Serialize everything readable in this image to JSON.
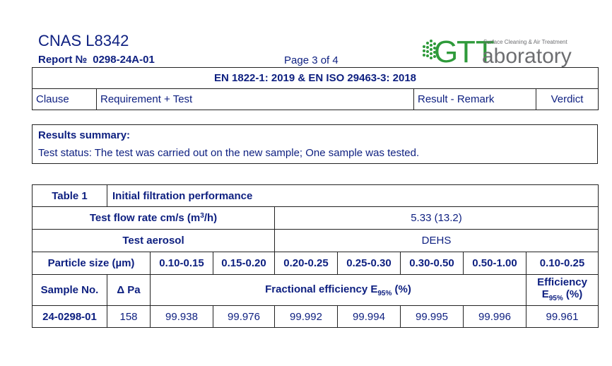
{
  "header": {
    "cnas": "CNAS L8342",
    "report_label": "Report №",
    "report_number": "0298-24A-01",
    "page": "Page 3 of 4"
  },
  "logo": {
    "g_letter": "G",
    "tt_letters": "TT",
    "word": "aboratory",
    "tagline": "Surface Cleaning & Air Treatment",
    "green": "#2e9a3a",
    "grey": "#6d6e71"
  },
  "header_table": {
    "standard": "EN 1822-1: 2019 & EN ISO 29463-3: 2018",
    "clause": "Clause",
    "requirement": "Requirement + Test",
    "result": "Result - Remark",
    "verdict": "Verdict"
  },
  "summary": {
    "title": "Results summary:",
    "status": "Test status: The test was carried out on the new sample; One sample was tested."
  },
  "results": {
    "table_no": "Table 1",
    "table_title": "Initial filtration performance",
    "flow_label": "Test flow rate cm/s (m",
    "flow_sup": "3",
    "flow_label_end": "/h)",
    "flow_value": "5.33 (13.2)",
    "aerosol_label": "Test aerosol",
    "aerosol_value": "DEHS",
    "particle_label": "Particle size (µm)",
    "sizes": [
      "0.10-0.15",
      "0.15-0.20",
      "0.20-0.25",
      "0.25-0.30",
      "0.30-0.50",
      "0.50-1.00",
      "0.10-0.25"
    ],
    "sample_label": "Sample No.",
    "dp_label": "Δ Pa",
    "frac_label": "Fractional efficiency E",
    "frac_sub": "95%",
    "frac_unit": " (%)",
    "eff_label": "Efficiency",
    "eff_e": "E",
    "eff_sub": "95%",
    "eff_unit": " (%)",
    "sample_no": "24-0298-01",
    "dp_value": "158",
    "values": [
      "99.938",
      "99.976",
      "99.992",
      "99.994",
      "99.995",
      "99.996",
      "99.961"
    ]
  }
}
